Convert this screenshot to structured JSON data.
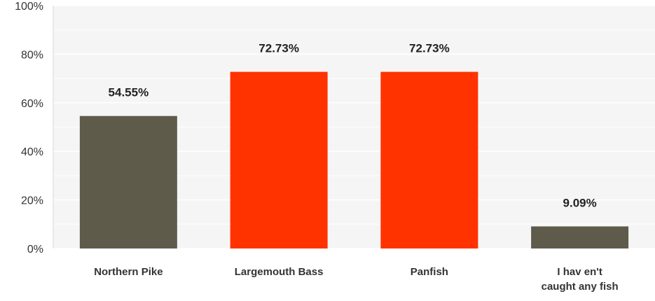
{
  "chart_data": {
    "type": "bar",
    "categories": [
      "Northern Pike",
      "Largemouth Bass",
      "Panfish",
      "I haven't caught any fish"
    ],
    "category_label_lines": [
      [
        "Northern Pike"
      ],
      [
        "Largemouth Bass"
      ],
      [
        "Panfish"
      ],
      [
        "I hav en't",
        "caught any fish"
      ]
    ],
    "values": [
      54.55,
      72.73,
      72.73,
      9.09
    ],
    "data_labels": [
      "54.55%",
      "72.73%",
      "72.73%",
      "9.09%"
    ],
    "bar_colors": [
      "#5e5b4b",
      "#ff3300",
      "#ff3300",
      "#5e5b4b"
    ],
    "ylim": [
      0,
      100
    ],
    "y_ticks": [
      0,
      20,
      40,
      60,
      80,
      100
    ],
    "y_tick_labels": [
      "0%",
      "20%",
      "40%",
      "60%",
      "80%",
      "100%"
    ],
    "grid": true,
    "title": "",
    "xlabel": "",
    "ylabel": "",
    "plot_background": "#f5f5f5",
    "grid_color": "#ffffff"
  }
}
